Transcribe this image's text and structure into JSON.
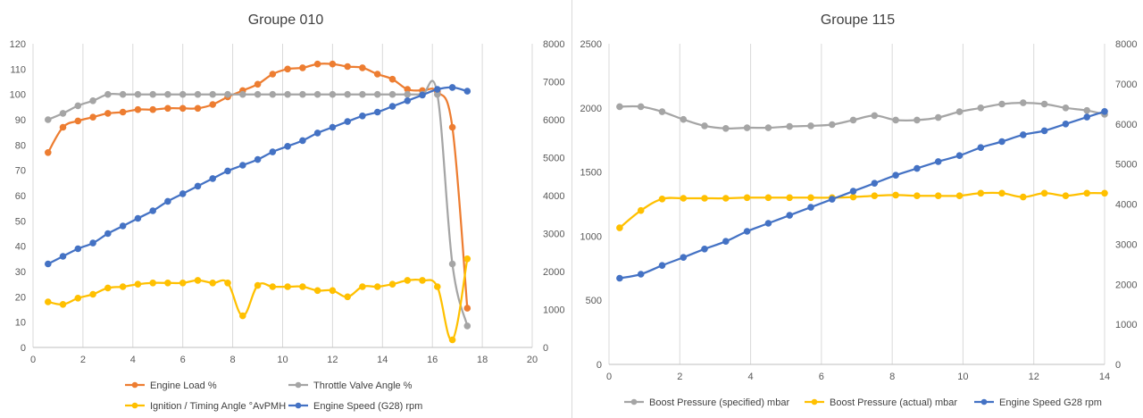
{
  "chart_data": [
    {
      "type": "line",
      "title": "Groupe 010",
      "xlabel": "",
      "ylabel": "",
      "xlim": [
        0,
        20
      ],
      "xticks": [
        0,
        2,
        4,
        6,
        8,
        10,
        12,
        14,
        16,
        18,
        20
      ],
      "ylim_left": [
        0,
        120
      ],
      "yticks_left": [
        0,
        10,
        20,
        30,
        40,
        50,
        60,
        70,
        80,
        90,
        100,
        110,
        120
      ],
      "ylim_right": [
        0,
        8000
      ],
      "yticks_right": [
        0,
        1000,
        2000,
        3000,
        4000,
        5000,
        6000,
        7000,
        8000
      ],
      "grid": "vertical",
      "legend_position": "bottom",
      "series": [
        {
          "name": "Engine Load %",
          "color": "#ED7D31",
          "axis": "left",
          "x": [
            0.6,
            1.2,
            1.8,
            2.4,
            3.0,
            3.6,
            4.2,
            4.8,
            5.4,
            6.0,
            6.6,
            7.2,
            7.8,
            8.4,
            9.0,
            9.6,
            10.2,
            10.8,
            11.4,
            12.0,
            12.6,
            13.2,
            13.8,
            14.4,
            15.0,
            15.6,
            16.2,
            16.8,
            17.4
          ],
          "values": [
            77,
            87,
            89.5,
            91,
            92.5,
            93,
            94,
            94,
            94.5,
            94.5,
            94.5,
            96,
            99,
            101.5,
            104,
            108,
            110,
            110.5,
            112,
            112,
            111,
            110.5,
            108,
            106,
            102,
            101.5,
            101,
            87,
            15.5
          ]
        },
        {
          "name": "Throttle Valve Angle %",
          "color": "#A5A5A5",
          "axis": "left",
          "x": [
            0.6,
            1.2,
            1.8,
            2.4,
            3.0,
            3.6,
            4.2,
            4.8,
            5.4,
            6.0,
            6.6,
            7.2,
            7.8,
            8.4,
            9.0,
            9.6,
            10.2,
            10.8,
            11.4,
            12.0,
            12.6,
            13.2,
            13.8,
            14.4,
            15.0,
            15.6,
            16.2,
            16.8,
            17.4
          ],
          "values": [
            90,
            92.5,
            95.5,
            97.5,
            100,
            100,
            100,
            100,
            100,
            100,
            100,
            100,
            100,
            100,
            100,
            100,
            100,
            100,
            100,
            100,
            100,
            100,
            100,
            100,
            100,
            100,
            100,
            33,
            8.5
          ]
        },
        {
          "name": "Ignition / Timing Angle °AvPMH",
          "color": "#FFC000",
          "axis": "left",
          "x": [
            0.6,
            1.2,
            1.8,
            2.4,
            3.0,
            3.6,
            4.2,
            4.8,
            5.4,
            6.0,
            6.6,
            7.2,
            7.8,
            8.4,
            9.0,
            9.6,
            10.2,
            10.8,
            11.4,
            12.0,
            12.6,
            13.2,
            13.8,
            14.4,
            15.0,
            15.6,
            16.2,
            16.8,
            17.4
          ],
          "values": [
            18,
            17,
            19.5,
            21,
            23.5,
            24,
            25,
            25.5,
            25.5,
            25.5,
            26.5,
            25.5,
            25.5,
            12.5,
            24.5,
            24,
            24,
            24,
            22.5,
            22.5,
            20,
            24,
            24,
            25,
            26.5,
            26.5,
            24,
            3,
            35
          ]
        },
        {
          "name": "Engine Speed (G28) rpm",
          "color": "#4472C4",
          "axis": "right",
          "x": [
            0.6,
            1.2,
            1.8,
            2.4,
            3.0,
            3.6,
            4.2,
            4.8,
            5.4,
            6.0,
            6.6,
            7.2,
            7.8,
            8.4,
            9.0,
            9.6,
            10.2,
            10.8,
            11.4,
            12.0,
            12.6,
            13.2,
            13.8,
            14.4,
            15.0,
            15.6,
            16.2,
            16.8,
            17.4
          ],
          "values": [
            2200,
            2400,
            2600,
            2750,
            3000,
            3200,
            3400,
            3600,
            3850,
            4050,
            4250,
            4450,
            4650,
            4800,
            4950,
            5150,
            5300,
            5450,
            5650,
            5800,
            5950,
            6100,
            6200,
            6350,
            6500,
            6650,
            6800,
            6850,
            6750
          ]
        }
      ]
    },
    {
      "type": "line",
      "title": "Groupe 115",
      "xlabel": "",
      "ylabel": "",
      "xlim": [
        0,
        14
      ],
      "xticks": [
        0,
        2,
        4,
        6,
        8,
        10,
        12,
        14
      ],
      "ylim_left": [
        0,
        2500
      ],
      "yticks_left": [
        0,
        500,
        1000,
        1500,
        2000,
        2500
      ],
      "ylim_right": [
        0,
        8000
      ],
      "yticks_right": [
        0,
        1000,
        2000,
        3000,
        4000,
        5000,
        6000,
        7000,
        8000
      ],
      "grid": "vertical",
      "legend_position": "bottom",
      "series": [
        {
          "name": "Boost Pressure (specified) mbar",
          "color": "#A5A5A5",
          "axis": "left",
          "x": [
            0.3,
            0.9,
            1.5,
            2.1,
            2.7,
            3.3,
            3.9,
            4.5,
            5.1,
            5.7,
            6.3,
            6.9,
            7.5,
            8.1,
            8.7,
            9.3,
            9.9,
            10.5,
            11.1,
            11.7,
            12.3,
            12.9,
            13.5,
            14.0
          ],
          "values": [
            2010,
            2010,
            1970,
            1910,
            1860,
            1840,
            1845,
            1845,
            1855,
            1860,
            1870,
            1905,
            1940,
            1905,
            1905,
            1925,
            1970,
            2000,
            2030,
            2040,
            2030,
            2000,
            1980,
            1950
          ]
        },
        {
          "name": "Boost Pressure (actual) mbar",
          "color": "#FFC000",
          "axis": "left",
          "x": [
            0.3,
            0.9,
            1.5,
            2.1,
            2.7,
            3.3,
            3.9,
            4.5,
            5.1,
            5.7,
            6.3,
            6.9,
            7.5,
            8.1,
            8.7,
            9.3,
            9.9,
            10.5,
            11.1,
            11.7,
            12.3,
            12.9,
            13.5,
            14.0
          ],
          "values": [
            1065,
            1200,
            1290,
            1295,
            1295,
            1295,
            1300,
            1300,
            1300,
            1300,
            1300,
            1305,
            1315,
            1320,
            1315,
            1315,
            1315,
            1335,
            1335,
            1305,
            1335,
            1315,
            1335,
            1335
          ]
        },
        {
          "name": "Engine Speed G28 rpm",
          "color": "#4472C4",
          "axis": "right",
          "x": [
            0.3,
            0.9,
            1.5,
            2.1,
            2.7,
            3.3,
            3.9,
            4.5,
            5.1,
            5.7,
            6.3,
            6.9,
            7.5,
            8.1,
            8.7,
            9.3,
            9.9,
            10.5,
            11.1,
            11.7,
            12.3,
            12.9,
            13.5,
            14.0
          ],
          "values": [
            2150,
            2250,
            2470,
            2670,
            2880,
            3070,
            3320,
            3520,
            3720,
            3920,
            4120,
            4320,
            4520,
            4720,
            4890,
            5060,
            5210,
            5410,
            5560,
            5730,
            5830,
            6000,
            6170,
            6310
          ]
        }
      ]
    }
  ]
}
